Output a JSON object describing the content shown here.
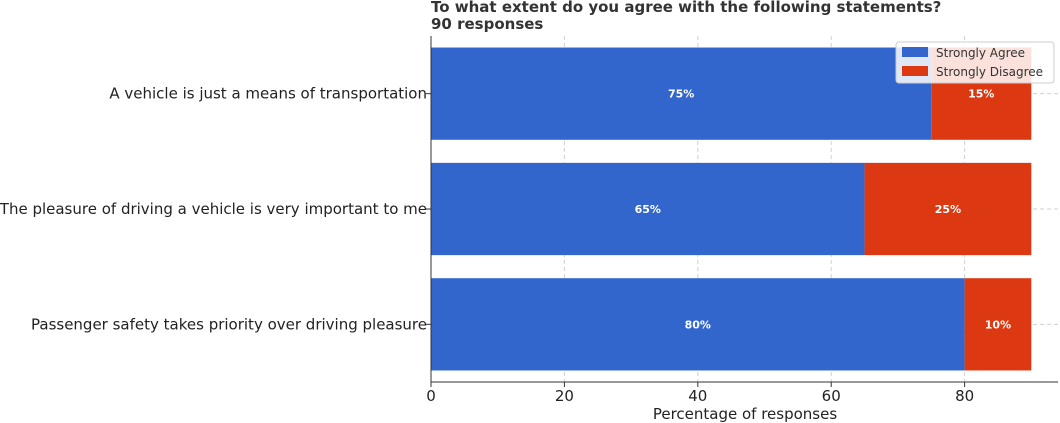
{
  "chart_data": {
    "type": "bar",
    "orientation": "horizontal",
    "stacked": true,
    "title": "To what extent do you agree with the following statements?",
    "subtitle": "90 responses",
    "xlabel": "Percentage of responses",
    "ylabel": "",
    "xlim": [
      0,
      94
    ],
    "xticks": [
      0,
      20,
      40,
      60,
      80
    ],
    "grid": true,
    "legend_position": "top-right",
    "categories": [
      "A vehicle is just a means of transportation",
      "The pleasure of driving a vehicle is very important to me",
      "Passenger safety takes priority over driving pleasure"
    ],
    "series": [
      {
        "name": "Strongly Agree",
        "color": "#3366cc",
        "values": [
          75,
          65,
          80
        ],
        "labels": [
          "75%",
          "65%",
          "80%"
        ]
      },
      {
        "name": "Strongly Disagree",
        "color": "#dc3912",
        "values": [
          15,
          25,
          10
        ],
        "labels": [
          "15%",
          "25%",
          "10%"
        ]
      }
    ]
  }
}
